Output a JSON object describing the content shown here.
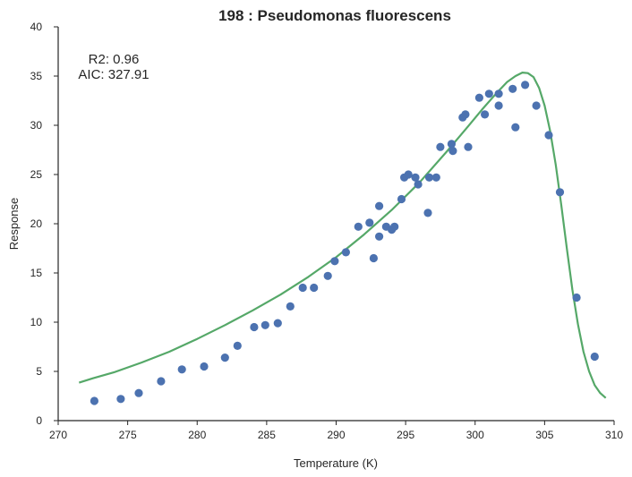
{
  "chart_data": {
    "type": "scatter",
    "title": "198 : Pseudomonas fluorescens",
    "xlabel": "Temperature (K)",
    "ylabel": "Response",
    "xlim": [
      270,
      310
    ],
    "ylim": [
      0,
      40
    ],
    "xticks": [
      270,
      275,
      280,
      285,
      290,
      295,
      300,
      305,
      310
    ],
    "yticks": [
      0,
      5,
      10,
      15,
      20,
      25,
      30,
      35,
      40
    ],
    "grid": false,
    "annotations": [
      "R2: 0.96",
      "AIC: 327.91"
    ],
    "colors": {
      "points": "#4c72b0",
      "fit": "#55a868",
      "axis": "#262626"
    },
    "series": [
      {
        "kind": "scatter",
        "points": [
          [
            272.6,
            2.0
          ],
          [
            274.5,
            2.2
          ],
          [
            275.8,
            2.8
          ],
          [
            277.4,
            4.0
          ],
          [
            278.9,
            5.2
          ],
          [
            280.5,
            5.5
          ],
          [
            282.0,
            6.4
          ],
          [
            282.9,
            7.6
          ],
          [
            284.1,
            9.5
          ],
          [
            284.9,
            9.7
          ],
          [
            285.8,
            9.9
          ],
          [
            286.7,
            11.6
          ],
          [
            287.6,
            13.5
          ],
          [
            288.4,
            13.5
          ],
          [
            289.4,
            14.7
          ],
          [
            289.9,
            16.2
          ],
          [
            290.7,
            17.1
          ],
          [
            291.6,
            19.7
          ],
          [
            292.4,
            20.1
          ],
          [
            292.7,
            16.5
          ],
          [
            293.1,
            18.7
          ],
          [
            293.1,
            21.8
          ],
          [
            293.6,
            19.7
          ],
          [
            294.0,
            19.4
          ],
          [
            294.2,
            19.7
          ],
          [
            294.7,
            22.5
          ],
          [
            294.9,
            24.7
          ],
          [
            295.2,
            25.0
          ],
          [
            295.7,
            24.7
          ],
          [
            295.9,
            24.0
          ],
          [
            296.6,
            21.1
          ],
          [
            296.7,
            24.7
          ],
          [
            297.2,
            24.7
          ],
          [
            297.5,
            27.8
          ],
          [
            298.3,
            28.1
          ],
          [
            298.4,
            27.4
          ],
          [
            299.1,
            30.8
          ],
          [
            299.3,
            31.1
          ],
          [
            299.5,
            27.8
          ],
          [
            300.3,
            32.8
          ],
          [
            300.7,
            31.1
          ],
          [
            301.0,
            33.2
          ],
          [
            301.7,
            32.0
          ],
          [
            301.7,
            33.2
          ],
          [
            302.7,
            33.7
          ],
          [
            302.9,
            29.8
          ],
          [
            303.6,
            34.1
          ],
          [
            304.4,
            32.0
          ],
          [
            305.3,
            29.0
          ],
          [
            306.1,
            23.2
          ],
          [
            307.3,
            12.5
          ],
          [
            308.6,
            6.5
          ]
        ]
      },
      {
        "kind": "line",
        "points": [
          [
            271.5,
            3.85
          ],
          [
            272.5,
            4.3
          ],
          [
            274.0,
            4.9
          ],
          [
            276.0,
            5.9
          ],
          [
            278.0,
            7.0
          ],
          [
            280.0,
            8.3
          ],
          [
            282.0,
            9.7
          ],
          [
            284.0,
            11.2
          ],
          [
            286.0,
            12.8
          ],
          [
            288.0,
            14.6
          ],
          [
            290.0,
            16.6
          ],
          [
            292.0,
            18.9
          ],
          [
            294.0,
            21.4
          ],
          [
            296.0,
            24.2
          ],
          [
            298.0,
            27.4
          ],
          [
            299.5,
            29.9
          ],
          [
            300.5,
            31.6
          ],
          [
            301.5,
            33.2
          ],
          [
            302.3,
            34.4
          ],
          [
            302.9,
            35.0
          ],
          [
            303.4,
            35.35
          ],
          [
            303.8,
            35.3
          ],
          [
            304.2,
            34.9
          ],
          [
            304.6,
            33.8
          ],
          [
            305.0,
            32.0
          ],
          [
            305.4,
            29.4
          ],
          [
            305.8,
            26.0
          ],
          [
            306.2,
            21.9
          ],
          [
            306.6,
            17.5
          ],
          [
            307.0,
            13.3
          ],
          [
            307.4,
            9.8
          ],
          [
            307.8,
            7.0
          ],
          [
            308.2,
            5.0
          ],
          [
            308.6,
            3.6
          ],
          [
            309.0,
            2.8
          ],
          [
            309.4,
            2.3
          ]
        ]
      }
    ]
  }
}
